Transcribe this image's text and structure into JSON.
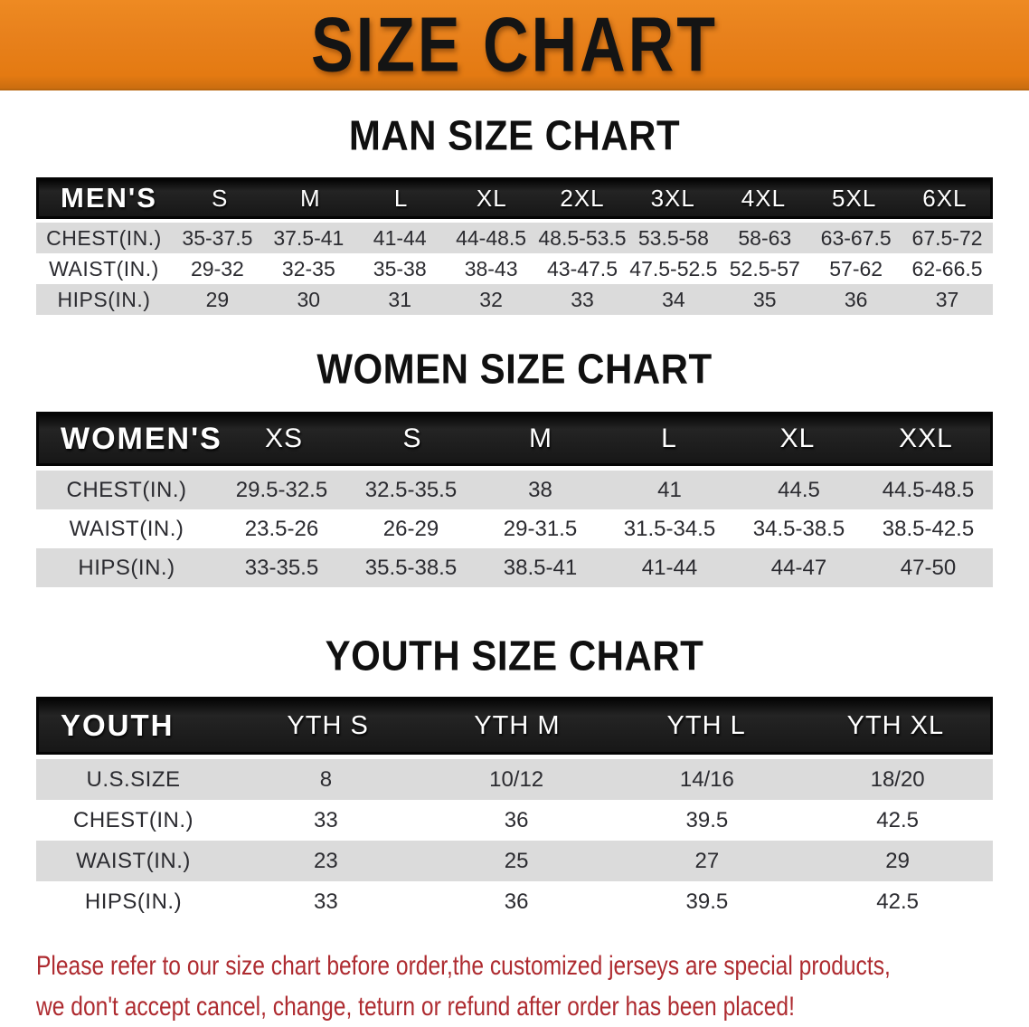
{
  "banner": {
    "title": "SIZE CHART"
  },
  "men": {
    "heading": "MAN SIZE CHART",
    "label": "MEN'S",
    "sizes": [
      "S",
      "M",
      "L",
      "XL",
      "2XL",
      "3XL",
      "4XL",
      "5XL",
      "6XL"
    ],
    "rows": [
      {
        "label": "CHEST(IN.)",
        "values": [
          "35-37.5",
          "37.5-41",
          "41-44",
          "44-48.5",
          "48.5-53.5",
          "53.5-58",
          "58-63",
          "63-67.5",
          "67.5-72"
        ]
      },
      {
        "label": "WAIST(IN.)",
        "values": [
          "29-32",
          "32-35",
          "35-38",
          "38-43",
          "43-47.5",
          "47.5-52.5",
          "52.5-57",
          "57-62",
          "62-66.5"
        ]
      },
      {
        "label": "HIPS(IN.)",
        "values": [
          "29",
          "30",
          "31",
          "32",
          "33",
          "34",
          "35",
          "36",
          "37"
        ]
      }
    ]
  },
  "women": {
    "heading": "WOMEN SIZE CHART",
    "label": "WOMEN'S",
    "sizes": [
      "XS",
      "S",
      "M",
      "L",
      "XL",
      "XXL"
    ],
    "rows": [
      {
        "label": "CHEST(IN.)",
        "values": [
          "29.5-32.5",
          "32.5-35.5",
          "38",
          "41",
          "44.5",
          "44.5-48.5"
        ]
      },
      {
        "label": "WAIST(IN.)",
        "values": [
          "23.5-26",
          "26-29",
          "29-31.5",
          "31.5-34.5",
          "34.5-38.5",
          "38.5-42.5"
        ]
      },
      {
        "label": "HIPS(IN.)",
        "values": [
          "33-35.5",
          "35.5-38.5",
          "38.5-41",
          "41-44",
          "44-47",
          "47-50"
        ]
      }
    ]
  },
  "youth": {
    "heading": "YOUTH SIZE CHART",
    "label": "YOUTH",
    "sizes": [
      "YTH S",
      "YTH M",
      "YTH L",
      "YTH XL"
    ],
    "rows": [
      {
        "label": "U.S.SIZE",
        "values": [
          "8",
          "10/12",
          "14/16",
          "18/20"
        ]
      },
      {
        "label": "CHEST(IN.)",
        "values": [
          "33",
          "36",
          "39.5",
          "42.5"
        ]
      },
      {
        "label": "WAIST(IN.)",
        "values": [
          "23",
          "25",
          "27",
          "29"
        ]
      },
      {
        "label": "HIPS(IN.)",
        "values": [
          "33",
          "36",
          "39.5",
          "42.5"
        ]
      }
    ]
  },
  "disclaimer": {
    "line1": "Please refer to our size chart before order,the customized jerseys are special products,",
    "line2": "we don't accept cancel, change, teturn or refund after order has been placed!"
  },
  "colors": {
    "banner_orange": "#E8811C",
    "header_black": "#171717",
    "row_gray": "#DBDBDB",
    "disclaimer_red": "#AE2B30"
  }
}
